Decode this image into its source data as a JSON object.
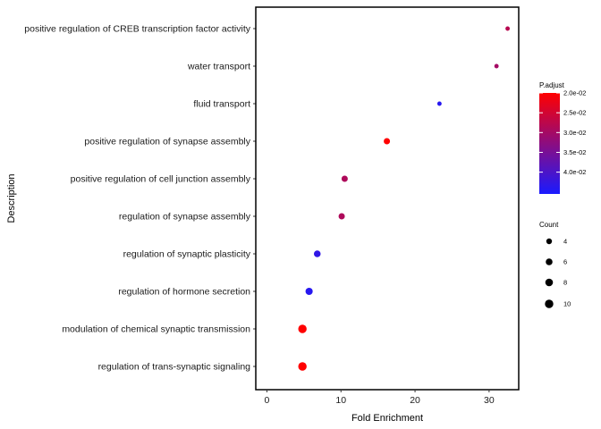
{
  "chart_data": {
    "type": "scatter",
    "xlabel": "Fold Enrichment",
    "ylabel": "Description",
    "xlim": [
      -1.5,
      34
    ],
    "x_ticks": [
      0,
      10,
      20,
      30
    ],
    "grid": false,
    "legend_position": "right",
    "categories": [
      "positive regulation of CREB transcription factor activity",
      "water transport",
      "fluid transport",
      "positive regulation of synapse assembly",
      "positive regulation of cell junction assembly",
      "regulation of synapse assembly",
      "regulation of synaptic plasticity",
      "regulation of hormone secretion",
      "modulation of chemical synaptic transmission",
      "regulation of trans-synaptic signaling"
    ],
    "points": [
      {
        "description": "positive regulation of CREB transcription factor activity",
        "fold_enrichment": 32.5,
        "count": 2,
        "p_adjust": 0.028
      },
      {
        "description": "water transport",
        "fold_enrichment": 31.0,
        "count": 2,
        "p_adjust": 0.03
      },
      {
        "description": "fluid transport",
        "fold_enrichment": 23.3,
        "count": 2,
        "p_adjust": 0.044
      },
      {
        "description": "positive regulation of synapse assembly",
        "fold_enrichment": 16.2,
        "count": 5,
        "p_adjust": 0.02
      },
      {
        "description": "positive regulation of cell junction assembly",
        "fold_enrichment": 10.5,
        "count": 5,
        "p_adjust": 0.029
      },
      {
        "description": "regulation of synapse assembly",
        "fold_enrichment": 10.1,
        "count": 5,
        "p_adjust": 0.029
      },
      {
        "description": "regulation of synaptic plasticity",
        "fold_enrichment": 6.8,
        "count": 6,
        "p_adjust": 0.043
      },
      {
        "description": "regulation of hormone secretion",
        "fold_enrichment": 5.7,
        "count": 7,
        "p_adjust": 0.044
      },
      {
        "description": "modulation of chemical synaptic transmission",
        "fold_enrichment": 4.8,
        "count": 10,
        "p_adjust": 0.02
      },
      {
        "description": "regulation of trans-synaptic signaling",
        "fold_enrichment": 4.8,
        "count": 10,
        "p_adjust": 0.02
      }
    ],
    "color_legend": {
      "title": "P.adjust",
      "labels": [
        "2.0e-02",
        "2.5e-02",
        "3.0e-02",
        "3.5e-02",
        "4.0e-02"
      ],
      "values": [
        0.02,
        0.025,
        0.03,
        0.035,
        0.04
      ],
      "range": [
        0.02,
        0.0455
      ],
      "low_color": "#ff0000",
      "high_color": "#1a1aff"
    },
    "size_legend": {
      "title": "Count",
      "labels": [
        "4",
        "6",
        "8",
        "10"
      ],
      "values": [
        4,
        6,
        8,
        10
      ]
    }
  }
}
